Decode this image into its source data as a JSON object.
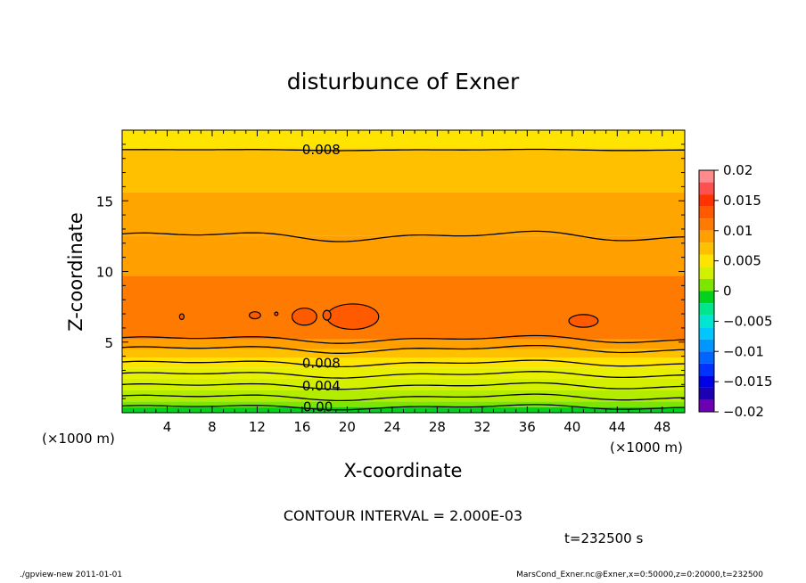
{
  "chart_data": {
    "type": "heatmap",
    "title": "disturbunce of Exner",
    "xlabel": "X-coordinate",
    "ylabel": "Z-coordinate",
    "x_unit": "(×1000 m)",
    "y_unit": "(×1000 m)",
    "xlim": [
      0,
      50
    ],
    "ylim": [
      0,
      20
    ],
    "x_ticks": [
      4,
      8,
      12,
      16,
      20,
      24,
      28,
      32,
      36,
      40,
      44,
      48
    ],
    "y_ticks": [
      5,
      10,
      15
    ],
    "contour_labels": [
      {
        "text": "0.008",
        "x": 17.7,
        "z": 18.6
      },
      {
        "text": "0.008",
        "x": 17.7,
        "z": 3.5
      },
      {
        "text": "0.004",
        "x": 17.7,
        "z": 1.9
      },
      {
        "text": "0.00",
        "x": 17.4,
        "z": 0.4
      }
    ],
    "contour_interval_text": "CONTOUR INTERVAL = 2.000E-03",
    "time_text": "t=232500 s",
    "colorbar": {
      "tick_labels": [
        "0.02",
        "0.015",
        "0.01",
        "0.005",
        "0",
        "−0.005",
        "−0.01",
        "−0.015",
        "−0.02"
      ],
      "tick_values": [
        0.02,
        0.015,
        0.01,
        0.005,
        0,
        -0.005,
        -0.01,
        -0.015,
        -0.02
      ],
      "levels": [
        {
          "lo": 0.018,
          "hi": 0.02,
          "color": "#ff8c8c"
        },
        {
          "lo": 0.016,
          "hi": 0.018,
          "color": "#ff5050"
        },
        {
          "lo": 0.014,
          "hi": 0.016,
          "color": "#ff3200"
        },
        {
          "lo": 0.012,
          "hi": 0.014,
          "color": "#ff5a00"
        },
        {
          "lo": 0.01,
          "hi": 0.012,
          "color": "#ff7a00"
        },
        {
          "lo": 0.008,
          "hi": 0.01,
          "color": "#ffa000"
        },
        {
          "lo": 0.006,
          "hi": 0.008,
          "color": "#ffc000"
        },
        {
          "lo": 0.004,
          "hi": 0.006,
          "color": "#ffe400"
        },
        {
          "lo": 0.002,
          "hi": 0.004,
          "color": "#d2f000"
        },
        {
          "lo": 0.0,
          "hi": 0.002,
          "color": "#7de600"
        },
        {
          "lo": -0.002,
          "hi": 0.0,
          "color": "#00d21e"
        },
        {
          "lo": -0.004,
          "hi": -0.002,
          "color": "#00e68c"
        },
        {
          "lo": -0.006,
          "hi": -0.004,
          "color": "#00e6d2"
        },
        {
          "lo": -0.008,
          "hi": -0.006,
          "color": "#00c8ff"
        },
        {
          "lo": -0.01,
          "hi": -0.008,
          "color": "#0096ff"
        },
        {
          "lo": -0.012,
          "hi": -0.01,
          "color": "#0064ff"
        },
        {
          "lo": -0.014,
          "hi": -0.012,
          "color": "#0032ff"
        },
        {
          "lo": -0.016,
          "hi": -0.014,
          "color": "#0000e6"
        },
        {
          "lo": -0.018,
          "hi": -0.016,
          "color": "#1e00b4"
        },
        {
          "lo": -0.02,
          "hi": -0.018,
          "color": "#6e00b4"
        }
      ]
    },
    "bands": [
      {
        "lo": 0.0,
        "hi": 0.4,
        "color": "#00d21e"
      },
      {
        "lo": 0.4,
        "hi": 0.8,
        "color": "#7de600"
      },
      {
        "lo": 0.8,
        "hi": 1.6,
        "color": "#b4ec00"
      },
      {
        "lo": 1.6,
        "hi": 2.4,
        "color": "#d2f000"
      },
      {
        "lo": 2.4,
        "hi": 3.2,
        "color": "#e6f000"
      },
      {
        "lo": 3.2,
        "hi": 3.9,
        "color": "#ffe400"
      },
      {
        "lo": 3.9,
        "hi": 4.5,
        "color": "#ffc000"
      },
      {
        "lo": 4.5,
        "hi": 5.2,
        "color": "#ffa000"
      },
      {
        "lo": 5.2,
        "hi": 9.7,
        "color": "#ff7a00"
      },
      {
        "lo": 9.7,
        "hi": 12.5,
        "color": "#ffa000"
      },
      {
        "lo": 12.5,
        "hi": 15.6,
        "color": "#ffa500"
      },
      {
        "lo": 15.6,
        "hi": 18.7,
        "color": "#ffc000"
      },
      {
        "lo": 18.7,
        "hi": 20.0,
        "color": "#ffe400"
      }
    ],
    "contours": [
      {
        "z": 18.6,
        "amp": 0.05,
        "label_gap": true
      },
      {
        "z": 12.5,
        "amp": 0.4,
        "label_gap": false
      },
      {
        "z": 5.2,
        "amp": 0.3,
        "label_gap": false
      },
      {
        "z": 4.5,
        "amp": 0.3,
        "label_gap": false
      },
      {
        "z": 3.5,
        "amp": 0.25,
        "label_gap": true
      },
      {
        "z": 2.7,
        "amp": 0.25,
        "label_gap": false
      },
      {
        "z": 1.9,
        "amp": 0.25,
        "label_gap": true
      },
      {
        "z": 1.1,
        "amp": 0.25,
        "label_gap": false
      },
      {
        "z": 0.4,
        "amp": 0.2,
        "label_gap": true
      }
    ],
    "cells": [
      {
        "x": 20.5,
        "z": 6.8,
        "rx": 2.3,
        "rz": 0.9,
        "color": "#ff5a00"
      },
      {
        "x": 16.2,
        "z": 6.8,
        "rx": 1.1,
        "rz": 0.6,
        "color": "#ff5a00"
      },
      {
        "x": 18.2,
        "z": 6.9,
        "rx": 0.35,
        "rz": 0.35,
        "color": "#ff5a00"
      },
      {
        "x": 41.0,
        "z": 6.5,
        "rx": 1.3,
        "rz": 0.45,
        "color": "#ff5a00"
      },
      {
        "x": 11.8,
        "z": 6.9,
        "rx": 0.5,
        "rz": 0.25,
        "color": "#ff5a00"
      },
      {
        "x": 5.3,
        "z": 6.8,
        "rx": 0.2,
        "rz": 0.2,
        "color": "#ff5a00"
      },
      {
        "x": 13.7,
        "z": 7.0,
        "rx": 0.15,
        "rz": 0.12,
        "color": "#ff5a00"
      }
    ]
  },
  "footer": {
    "left": "./gpview-new   2011-01-01",
    "right": "MarsCond_Exner.nc@Exner,x=0:50000,z=0:20000,t=232500"
  }
}
